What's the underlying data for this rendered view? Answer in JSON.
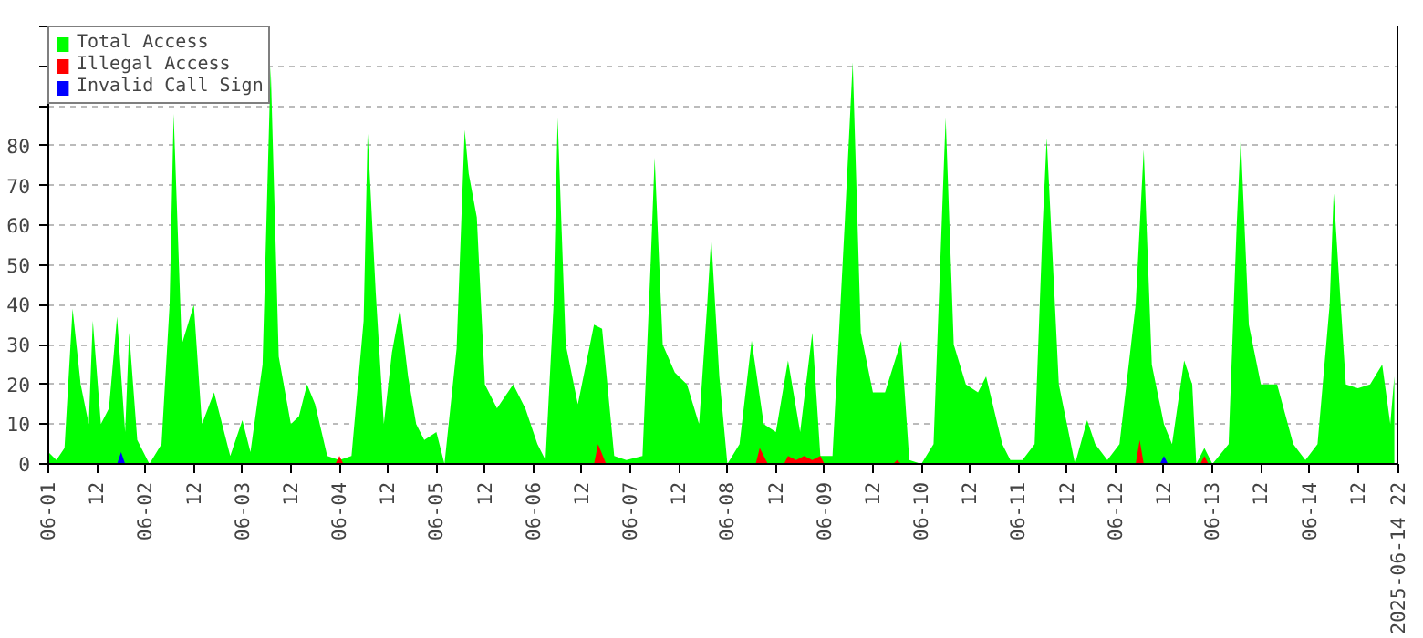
{
  "chart_data": {
    "type": "area",
    "grid": "y",
    "legend": "top left",
    "xlim": [
      "2025-06-01T00:00",
      "2025-06-14T22:00"
    ],
    "xticks": [
      {
        "value": "2025-06-01T00:00",
        "label": "06-01"
      },
      {
        "value": "2025-06-01T12:00",
        "label": "12"
      },
      {
        "value": "2025-06-02T00:00",
        "label": "06-02"
      },
      {
        "value": "2025-06-02T12:00",
        "label": "12"
      },
      {
        "value": "2025-06-03T00:00",
        "label": "06-03"
      },
      {
        "value": "2025-06-03T12:00",
        "label": "12"
      },
      {
        "value": "2025-06-04T00:00",
        "label": "06-04"
      },
      {
        "value": "2025-06-04T12:00",
        "label": "12"
      },
      {
        "value": "2025-06-05T00:00",
        "label": "06-05"
      },
      {
        "value": "2025-06-05T12:00",
        "label": "12"
      },
      {
        "value": "2025-06-06T00:00",
        "label": "06-06"
      },
      {
        "value": "2025-06-06T12:00",
        "label": "12"
      },
      {
        "value": "2025-06-07T00:00",
        "label": "06-07"
      },
      {
        "value": "2025-06-07T12:00",
        "label": "12"
      },
      {
        "value": "2025-06-08T00:00",
        "label": "06-08"
      },
      {
        "value": "2025-06-08T12:00",
        "label": "12"
      },
      {
        "value": "2025-06-09T00:00",
        "label": "06-09"
      },
      {
        "value": "2025-06-09T12:00",
        "label": "12"
      },
      {
        "value": "2025-06-10T00:00",
        "label": "06-10"
      },
      {
        "value": "2025-06-10T12:00",
        "label": "12"
      },
      {
        "value": "2025-06-11T00:00",
        "label": "06-11"
      },
      {
        "value": "2025-06-11T12:00",
        "label": "12"
      },
      {
        "value": "2025-06-12T00:00",
        "label": "06-12"
      },
      {
        "value": "2025-06-12T12:00",
        "label": "12"
      },
      {
        "value": "2025-06-13T00:00",
        "label": "06-13"
      },
      {
        "value": "2025-06-13T12:00",
        "label": "12"
      },
      {
        "value": "2025-06-14T00:00",
        "label": "06-14"
      },
      {
        "value": "2025-06-14T12:00",
        "label": "12"
      },
      {
        "value": "2025-06-14T22:00",
        "label": "2025-06-14 22"
      }
    ],
    "ylim": [
      0,
      110
    ],
    "yticks": [
      0,
      10,
      20,
      30,
      40,
      50,
      60,
      70,
      80,
      {
        "value": 90,
        "label": null
      },
      {
        "value": 100,
        "label": null
      },
      {
        "value": 110,
        "label": null
      }
    ],
    "series": [
      {
        "name": "Total Access",
        "color": "#00ff00",
        "x": [
          "2025-06-01T00:00",
          "2025-06-01T02:00",
          "2025-06-01T04:00",
          "2025-06-01T06:00",
          "2025-06-01T08:00",
          "2025-06-01T10:00",
          "2025-06-01T11:00",
          "2025-06-01T13:00",
          "2025-06-01T15:00",
          "2025-06-01T17:00",
          "2025-06-01T19:00",
          "2025-06-01T20:00",
          "2025-06-01T22:00",
          "2025-06-02T00:00",
          "2025-06-02T01:00",
          "2025-06-02T04:00",
          "2025-06-02T06:00",
          "2025-06-02T07:00",
          "2025-06-02T09:00",
          "2025-06-02T12:00",
          "2025-06-02T14:00",
          "2025-06-02T17:00",
          "2025-06-02T21:00",
          "2025-06-03T00:00",
          "2025-06-03T02:00",
          "2025-06-03T05:00",
          "2025-06-03T07:00",
          "2025-06-03T09:00",
          "2025-06-03T12:00",
          "2025-06-03T14:00",
          "2025-06-03T16:00",
          "2025-06-03T18:00",
          "2025-06-03T21:00",
          "2025-06-04T00:00",
          "2025-06-04T03:00",
          "2025-06-04T06:00",
          "2025-06-04T07:00",
          "2025-06-04T09:00",
          "2025-06-04T11:00",
          "2025-06-04T13:00",
          "2025-06-04T15:00",
          "2025-06-04T17:00",
          "2025-06-04T19:00",
          "2025-06-04T21:00",
          "2025-06-05T00:00",
          "2025-06-05T02:00",
          "2025-06-05T05:00",
          "2025-06-05T07:00",
          "2025-06-05T08:00",
          "2025-06-05T10:00",
          "2025-06-05T12:00",
          "2025-06-05T15:00",
          "2025-06-05T19:00",
          "2025-06-05T22:00",
          "2025-06-06T01:00",
          "2025-06-06T03:00",
          "2025-06-06T05:00",
          "2025-06-06T06:00",
          "2025-06-06T08:00",
          "2025-06-06T11:00",
          "2025-06-06T15:00",
          "2025-06-06T17:00",
          "2025-06-06T20:00",
          "2025-06-06T23:00",
          "2025-06-07T03:00",
          "2025-06-07T05:00",
          "2025-06-07T06:00",
          "2025-06-07T08:00",
          "2025-06-07T11:00",
          "2025-06-07T14:00",
          "2025-06-07T17:00",
          "2025-06-07T19:00",
          "2025-06-07T20:00",
          "2025-06-07T22:00",
          "2025-06-08T00:00",
          "2025-06-08T03:00",
          "2025-06-08T06:00",
          "2025-06-08T09:00",
          "2025-06-08T12:00",
          "2025-06-08T15:00",
          "2025-06-08T18:00",
          "2025-06-08T21:00",
          "2025-06-08T23:00",
          "2025-06-09T02:00",
          "2025-06-09T05:00",
          "2025-06-09T07:00",
          "2025-06-09T09:00",
          "2025-06-09T12:00",
          "2025-06-09T15:00",
          "2025-06-09T19:00",
          "2025-06-09T21:00",
          "2025-06-10T00:00",
          "2025-06-10T03:00",
          "2025-06-10T05:00",
          "2025-06-10T06:00",
          "2025-06-10T08:00",
          "2025-06-10T11:00",
          "2025-06-10T14:00",
          "2025-06-10T16:00",
          "2025-06-10T20:00",
          "2025-06-10T22:00",
          "2025-06-11T01:00",
          "2025-06-11T04:00",
          "2025-06-11T06:00",
          "2025-06-11T07:00",
          "2025-06-11T10:00",
          "2025-06-11T12:00",
          "2025-06-11T14:00",
          "2025-06-11T17:00",
          "2025-06-11T19:00",
          "2025-06-11T22:00",
          "2025-06-12T01:00",
          "2025-06-12T05:00",
          "2025-06-12T07:00",
          "2025-06-12T09:00",
          "2025-06-12T12:00",
          "2025-06-12T14:00",
          "2025-06-12T17:00",
          "2025-06-12T19:00",
          "2025-06-12T20:00",
          "2025-06-12T22:00",
          "2025-06-13T00:00",
          "2025-06-13T04:00",
          "2025-06-13T06:00",
          "2025-06-13T07:00",
          "2025-06-13T09:00",
          "2025-06-13T12:00",
          "2025-06-13T16:00",
          "2025-06-13T20:00",
          "2025-06-13T23:00",
          "2025-06-14T02:00",
          "2025-06-14T05:00",
          "2025-06-14T06:00",
          "2025-06-14T09:00",
          "2025-06-14T12:00",
          "2025-06-14T15:00",
          "2025-06-14T18:00",
          "2025-06-14T20:00",
          "2025-06-14T21:00"
        ],
        "values": [
          3,
          1,
          4,
          39,
          20,
          10,
          36,
          10,
          14,
          37,
          8,
          33,
          6,
          2,
          0,
          5,
          40,
          88,
          30,
          40,
          10,
          18,
          2,
          11,
          3,
          25,
          100,
          27,
          10,
          12,
          20,
          15,
          2,
          1,
          2,
          36,
          83,
          43,
          10,
          28,
          39,
          22,
          10,
          6,
          8,
          0,
          29,
          84,
          73,
          62,
          20,
          14,
          20,
          14,
          5,
          1,
          40,
          87,
          30,
          15,
          35,
          34,
          2,
          1,
          2,
          50,
          77,
          30,
          23,
          20,
          10,
          40,
          57,
          22,
          0,
          5,
          31,
          10,
          8,
          26,
          8,
          33,
          2,
          2,
          60,
          101,
          33,
          18,
          18,
          31,
          1,
          0,
          5,
          60,
          87,
          30,
          20,
          18,
          22,
          5,
          1,
          1,
          5,
          60,
          82,
          20,
          10,
          0,
          11,
          5,
          1,
          5,
          40,
          79,
          25,
          10,
          5,
          26,
          20,
          0,
          4,
          0,
          5,
          60,
          82,
          35,
          20,
          20,
          5,
          1,
          5,
          40,
          68,
          20,
          19,
          20,
          25,
          10,
          22
        ]
      },
      {
        "name": "Illegal Access",
        "color": "#ff0000",
        "x": [
          "2025-06-01T00:00",
          "2025-06-03T23:00",
          "2025-06-04T00:00",
          "2025-06-04T01:00",
          "2025-06-06T15:00",
          "2025-06-06T16:00",
          "2025-06-06T18:00",
          "2025-06-08T07:00",
          "2025-06-08T08:00",
          "2025-06-08T10:00",
          "2025-06-08T14:00",
          "2025-06-08T15:00",
          "2025-06-08T17:00",
          "2025-06-08T19:00",
          "2025-06-08T21:00",
          "2025-06-08T23:00",
          "2025-06-09T00:00",
          "2025-06-09T17:00",
          "2025-06-09T18:00",
          "2025-06-09T19:00",
          "2025-06-12T05:00",
          "2025-06-12T06:00",
          "2025-06-12T07:00",
          "2025-06-12T21:00",
          "2025-06-12T22:00",
          "2025-06-12T23:00",
          "2025-06-14T21:00"
        ],
        "values": [
          0,
          0,
          2,
          0,
          0,
          5,
          0,
          0,
          4,
          0,
          0,
          2,
          1,
          2,
          1,
          2,
          0,
          0,
          1,
          0,
          0,
          6,
          0,
          0,
          2,
          0,
          0
        ]
      },
      {
        "name": "Invalid Call Sign",
        "color": "#0000ff",
        "x": [
          "2025-06-01T00:00",
          "2025-06-01T17:00",
          "2025-06-01T18:00",
          "2025-06-01T19:00",
          "2025-06-12T11:00",
          "2025-06-12T12:00",
          "2025-06-12T13:00",
          "2025-06-14T21:00"
        ],
        "values": [
          0,
          0,
          3,
          0,
          0,
          2,
          0,
          0
        ]
      }
    ]
  }
}
